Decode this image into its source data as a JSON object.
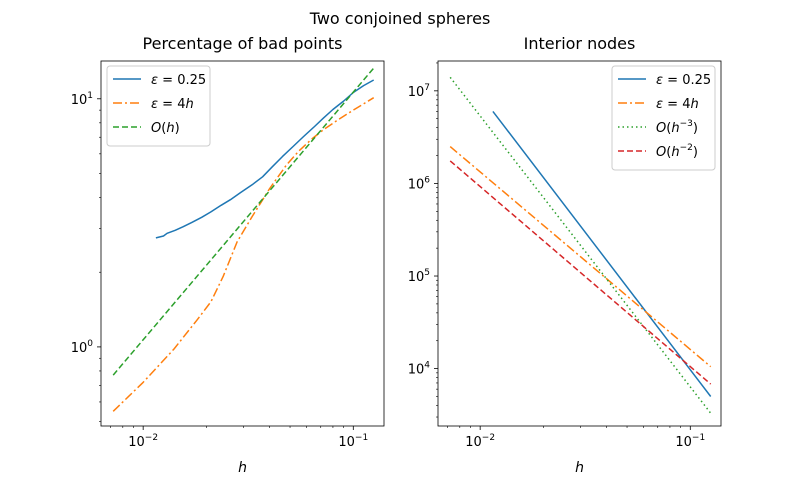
{
  "title": "Two conjoined spheres",
  "chart_data": [
    {
      "type": "line",
      "title": "Percentage of bad points",
      "xlabel": "h",
      "ylabel": "",
      "xscale": "log",
      "yscale": "log",
      "xlim": [
        0.0063,
        0.14
      ],
      "ylim": [
        0.48,
        14.2
      ],
      "xticks": [
        {
          "value": 0.01,
          "label": "10",
          "exp": "−2"
        },
        {
          "value": 0.1,
          "label": "10",
          "exp": "−1"
        }
      ],
      "yticks": [
        {
          "value": 1,
          "label": "10",
          "exp": "0"
        },
        {
          "value": 10,
          "label": "10",
          "exp": "1"
        }
      ],
      "grid": false,
      "legend_position": "upper-left",
      "series": [
        {
          "name": "ε = 0.25",
          "legend": {
            "pre": "ε",
            "eq": " = 0.25",
            "it": "",
            "exp": "",
            "post": ""
          },
          "color": "#1f77b4",
          "dash": "",
          "x": [
            0.0115,
            0.0125,
            0.013,
            0.0142,
            0.0155,
            0.017,
            0.019,
            0.021,
            0.0235,
            0.026,
            0.029,
            0.033,
            0.037,
            0.041,
            0.046,
            0.052,
            0.058,
            0.065,
            0.072,
            0.08,
            0.09,
            0.1,
            0.112,
            0.125
          ],
          "y": [
            2.75,
            2.8,
            2.87,
            2.95,
            3.05,
            3.17,
            3.33,
            3.5,
            3.72,
            3.92,
            4.18,
            4.5,
            4.85,
            5.3,
            5.85,
            6.45,
            7.05,
            7.7,
            8.35,
            9.05,
            9.8,
            10.6,
            11.3,
            11.9
          ]
        },
        {
          "name": "ε = 4h",
          "legend": {
            "pre": "ε",
            "eq": " = 4",
            "it": "h",
            "exp": "",
            "post": ""
          },
          "color": "#ff7f0e",
          "dash": "9,3,2,3",
          "x": [
            0.0072,
            0.01,
            0.014,
            0.018,
            0.021,
            0.024,
            0.028,
            0.033,
            0.04,
            0.048,
            0.055,
            0.063,
            0.072,
            0.085,
            0.1,
            0.125
          ],
          "y": [
            0.55,
            0.72,
            0.98,
            1.28,
            1.52,
            1.92,
            2.65,
            3.35,
            4.35,
            5.4,
            6.15,
            6.85,
            7.5,
            8.25,
            9.0,
            10.1
          ]
        },
        {
          "name": "O(h)",
          "legend": {
            "pre": "O(",
            "eq": "",
            "it": "h",
            "exp": "",
            "post": ")"
          },
          "color": "#2ca02c",
          "dash": "6,3",
          "x": [
            0.0072,
            0.125
          ],
          "y": [
            0.77,
            13.3
          ]
        }
      ]
    },
    {
      "type": "line",
      "title": "Interior nodes",
      "xlabel": "h",
      "ylabel": "",
      "xscale": "log",
      "yscale": "log",
      "xlim": [
        0.0063,
        0.14
      ],
      "ylim": [
        2400,
        21000000
      ],
      "xticks": [
        {
          "value": 0.01,
          "label": "10",
          "exp": "−2"
        },
        {
          "value": 0.1,
          "label": "10",
          "exp": "−1"
        }
      ],
      "yticks": [
        {
          "value": 10000,
          "label": "10",
          "exp": "4"
        },
        {
          "value": 100000,
          "label": "10",
          "exp": "5"
        },
        {
          "value": 1000000,
          "label": "10",
          "exp": "6"
        },
        {
          "value": 10000000,
          "label": "10",
          "exp": "7"
        }
      ],
      "grid": false,
      "legend_position": "upper-right",
      "series": [
        {
          "name": "ε = 0.25",
          "legend": {
            "pre": "ε",
            "eq": " = 0.25",
            "it": "",
            "exp": "",
            "post": ""
          },
          "color": "#1f77b4",
          "dash": "",
          "x": [
            0.0115,
            0.125
          ],
          "y": [
            6000000,
            5000
          ]
        },
        {
          "name": "ε = 4h",
          "legend": {
            "pre": "ε",
            "eq": " = 4",
            "it": "h",
            "exp": "",
            "post": ""
          },
          "color": "#ff7f0e",
          "dash": "9,3,2,3",
          "x": [
            0.0072,
            0.125
          ],
          "y": [
            2500000,
            10500
          ]
        },
        {
          "name": "O(h−3)",
          "legend": {
            "pre": "O(",
            "eq": "",
            "it": "h",
            "exp": "−3",
            "post": ")"
          },
          "color": "#2ca02c",
          "dash": "1.5,3",
          "x": [
            0.0072,
            0.125
          ],
          "y": [
            14000000,
            3300
          ]
        },
        {
          "name": "O(h−2)",
          "legend": {
            "pre": "O(",
            "eq": "",
            "it": "h",
            "exp": "−2",
            "post": ")"
          },
          "color": "#d62728",
          "dash": "6,3",
          "x": [
            0.0072,
            0.125
          ],
          "y": [
            1750000,
            6800
          ]
        }
      ]
    }
  ]
}
